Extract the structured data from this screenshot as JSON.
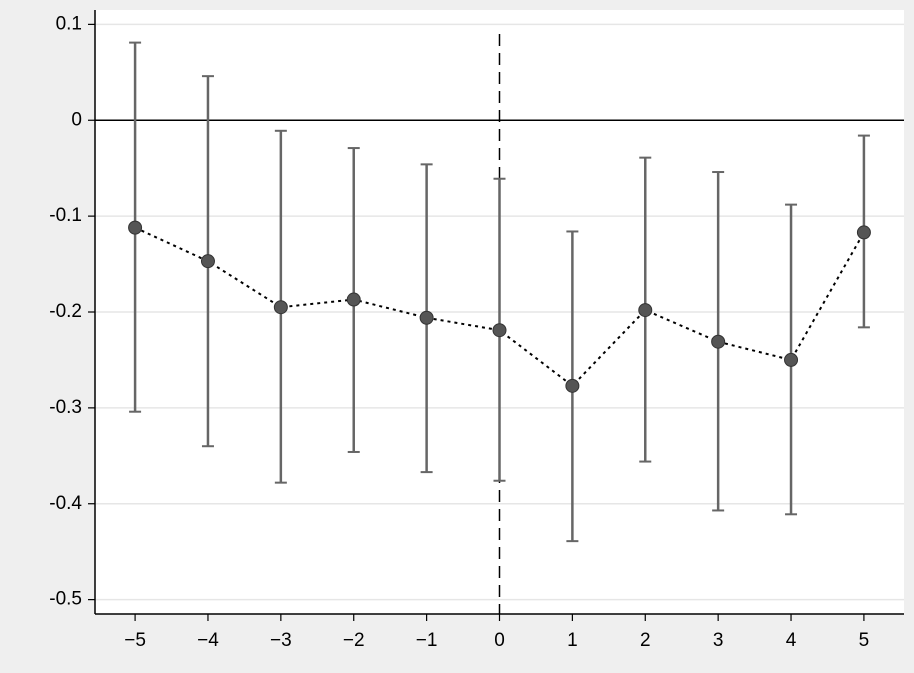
{
  "colors": {
    "outer_background": "#efefef",
    "plot_background": "#ffffff",
    "grid": "#e6e6e6",
    "marker": "#555555",
    "error_bar": "#666666",
    "axis": "#000000"
  },
  "chart_data": {
    "type": "scatter",
    "title": "",
    "xlabel": "",
    "ylabel": "",
    "x": [
      -5,
      -4,
      -3,
      -2,
      -1,
      0,
      1,
      2,
      3,
      4,
      5
    ],
    "x_tick_labels": [
      "−5",
      "−4",
      "−3",
      "−2",
      "−1",
      "0",
      "1",
      "2",
      "3",
      "4",
      "5"
    ],
    "y_ticks": [
      0.1,
      0,
      -0.1,
      -0.2,
      -0.3,
      -0.4,
      -0.5
    ],
    "y_tick_labels": [
      "0.1",
      "0",
      "-0.1",
      "-0.2",
      "-0.3",
      "-0.4",
      "-0.5"
    ],
    "xlim": [
      -5.55,
      5.55
    ],
    "ylim": [
      -0.515,
      0.115
    ],
    "grid": true,
    "series": [
      {
        "values": [
          -0.112,
          -0.147,
          -0.195,
          -0.187,
          -0.206,
          -0.219,
          -0.277,
          -0.198,
          -0.231,
          -0.25,
          -0.117
        ],
        "ci_upper": [
          0.081,
          0.046,
          -0.011,
          -0.029,
          -0.046,
          -0.061,
          -0.116,
          -0.039,
          -0.054,
          -0.088,
          -0.016
        ],
        "ci_lower": [
          -0.304,
          -0.34,
          -0.378,
          -0.346,
          -0.367,
          -0.376,
          -0.439,
          -0.356,
          -0.407,
          -0.411,
          -0.216
        ],
        "line_style": "dotted",
        "marker": "circle"
      }
    ],
    "reference_lines": {
      "horizontal_y": 0,
      "vertical_x": 0,
      "vertical_style": "dashed"
    }
  }
}
